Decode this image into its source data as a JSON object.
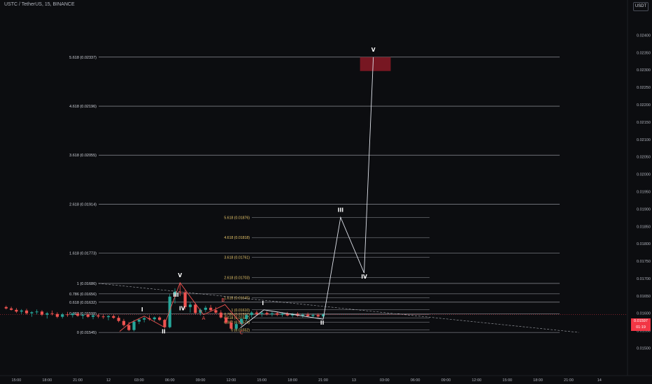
{
  "header": {
    "symbol_title": "USTC / TetherUS, 15, BINANCE",
    "currency_label": "USDT"
  },
  "price_tag": {
    "price": "0.01597",
    "countdown": "01:19"
  },
  "colors": {
    "background": "#0c0d10",
    "candle_up": "#26a69a",
    "candle_down": "#ef5350",
    "fib_big": "#d1d4dc",
    "fib_small_label": "#e8c66a",
    "target_box": "#8b1a26",
    "wave_red": "#ef5350",
    "wave_white": "#ffffff"
  },
  "chart_data": {
    "type": "candlestick",
    "y_axis": {
      "ylim": [
        0.01485,
        0.02425
      ],
      "tick_labels": [
        "0.02400",
        "0.02350",
        "0.02300",
        "0.02250",
        "0.02200",
        "0.02150",
        "0.02100",
        "0.02050",
        "0.02000",
        "0.01950",
        "0.01900",
        "0.01850",
        "0.01800",
        "0.01750",
        "0.01700",
        "0.01650",
        "0.01600",
        "0.01550",
        "0.01500"
      ]
    },
    "x_axis": {
      "tick_labels": [
        {
          "label": "15:00",
          "time": -9
        },
        {
          "label": "18:00",
          "time": -6
        },
        {
          "label": "21:00",
          "time": -3
        },
        {
          "label": "12",
          "time": 0
        },
        {
          "label": "03:00",
          "time": 3
        },
        {
          "label": "06:00",
          "time": 6
        },
        {
          "label": "09:00",
          "time": 9
        },
        {
          "label": "12:00",
          "time": 12
        },
        {
          "label": "15:00",
          "time": 15
        },
        {
          "label": "18:00",
          "time": 18
        },
        {
          "label": "21:00",
          "time": 21
        },
        {
          "label": "13",
          "time": 24
        },
        {
          "label": "03:00",
          "time": 27
        },
        {
          "label": "06:00",
          "time": 30
        },
        {
          "label": "09:00",
          "time": 33
        },
        {
          "label": "12:00",
          "time": 36
        },
        {
          "label": "15:00",
          "time": 39
        },
        {
          "label": "18:00",
          "time": 42
        },
        {
          "label": "21:00",
          "time": 45
        },
        {
          "label": "14",
          "time": 48
        }
      ]
    },
    "candles": [
      [
        -10.0,
        0.01618,
        0.01622,
        0.01611,
        0.01614
      ],
      [
        -9.5,
        0.01614,
        0.01619,
        0.01608,
        0.0161
      ],
      [
        -9.0,
        0.0161,
        0.01615,
        0.01601,
        0.01605
      ],
      [
        -8.5,
        0.01605,
        0.01612,
        0.01598,
        0.01608
      ],
      [
        -8.0,
        0.01608,
        0.01613,
        0.01596,
        0.016
      ],
      [
        -7.5,
        0.016,
        0.01606,
        0.0159,
        0.01603
      ],
      [
        -7.0,
        0.01603,
        0.01611,
        0.01597,
        0.01605
      ],
      [
        -6.5,
        0.01605,
        0.01609,
        0.01592,
        0.01596
      ],
      [
        -6.0,
        0.01596,
        0.01604,
        0.01585,
        0.016
      ],
      [
        -5.5,
        0.016,
        0.01608,
        0.01594,
        0.01598
      ],
      [
        -5.0,
        0.01598,
        0.01603,
        0.01586,
        0.0159
      ],
      [
        -4.5,
        0.0159,
        0.01601,
        0.01585,
        0.01597
      ],
      [
        -4.0,
        0.01597,
        0.01604,
        0.0159,
        0.01595
      ],
      [
        -3.5,
        0.01595,
        0.01602,
        0.01588,
        0.01599
      ],
      [
        -3.0,
        0.01599,
        0.01603,
        0.0159,
        0.01593
      ],
      [
        -2.5,
        0.01593,
        0.016,
        0.01584,
        0.01596
      ],
      [
        -2.0,
        0.01596,
        0.01601,
        0.01587,
        0.0159
      ],
      [
        -1.5,
        0.0159,
        0.01598,
        0.01583,
        0.01594
      ],
      [
        -1.0,
        0.01594,
        0.01599,
        0.01586,
        0.01591
      ],
      [
        -0.5,
        0.01591,
        0.01597,
        0.01584,
        0.01589
      ],
      [
        0.0,
        0.01589,
        0.01595,
        0.0158,
        0.01592
      ],
      [
        0.5,
        0.01592,
        0.01596,
        0.01584,
        0.01587
      ],
      [
        1.0,
        0.01587,
        0.01593,
        0.01574,
        0.01578
      ],
      [
        1.5,
        0.01578,
        0.01584,
        0.01562,
        0.01566
      ],
      [
        2.0,
        0.01566,
        0.01575,
        0.01549,
        0.01552
      ],
      [
        2.5,
        0.01552,
        0.01581,
        0.01548,
        0.01576
      ],
      [
        3.0,
        0.01576,
        0.01586,
        0.01569,
        0.01582
      ],
      [
        3.5,
        0.01582,
        0.0159,
        0.01574,
        0.01586
      ],
      [
        4.0,
        0.01586,
        0.01594,
        0.01579,
        0.01583
      ],
      [
        4.5,
        0.01583,
        0.01591,
        0.01576,
        0.01588
      ],
      [
        5.0,
        0.01588,
        0.01592,
        0.01578,
        0.01581
      ],
      [
        5.5,
        0.01581,
        0.01584,
        0.01556,
        0.0156
      ],
      [
        6.0,
        0.0156,
        0.01655,
        0.01557,
        0.01648
      ],
      [
        6.5,
        0.01648,
        0.01672,
        0.01628,
        0.01662
      ],
      [
        7.0,
        0.01662,
        0.01689,
        0.0165,
        0.0166
      ],
      [
        7.5,
        0.0166,
        0.01666,
        0.01611,
        0.01618
      ],
      [
        8.0,
        0.01618,
        0.01632,
        0.01602,
        0.01625
      ],
      [
        8.5,
        0.01625,
        0.0163,
        0.01596,
        0.01601
      ],
      [
        9.0,
        0.01601,
        0.01614,
        0.01594,
        0.0161
      ],
      [
        9.5,
        0.0161,
        0.01622,
        0.01603,
        0.01616
      ],
      [
        10.0,
        0.01616,
        0.01624,
        0.01606,
        0.01609
      ],
      [
        10.5,
        0.01609,
        0.01618,
        0.01598,
        0.01602
      ],
      [
        11.0,
        0.01602,
        0.01609,
        0.01585,
        0.01588
      ],
      [
        11.5,
        0.01588,
        0.01594,
        0.01569,
        0.01573
      ],
      [
        12.0,
        0.01573,
        0.0158,
        0.01552,
        0.01556
      ],
      [
        12.5,
        0.01556,
        0.01574,
        0.01551,
        0.01569
      ],
      [
        13.0,
        0.01569,
        0.01587,
        0.01563,
        0.01584
      ],
      [
        13.5,
        0.01584,
        0.01598,
        0.01578,
        0.01595
      ],
      [
        14.0,
        0.01595,
        0.01606,
        0.01588,
        0.01602
      ],
      [
        14.5,
        0.01602,
        0.01608,
        0.01593,
        0.01598
      ],
      [
        15.0,
        0.01598,
        0.01605,
        0.0159,
        0.01601
      ],
      [
        15.5,
        0.01601,
        0.01606,
        0.01594,
        0.01597
      ],
      [
        16.0,
        0.01597,
        0.01604,
        0.01591,
        0.016
      ],
      [
        16.5,
        0.016,
        0.01605,
        0.01592,
        0.01596
      ],
      [
        17.0,
        0.01596,
        0.01603,
        0.0159,
        0.01599
      ],
      [
        17.5,
        0.01599,
        0.01604,
        0.01591,
        0.01594
      ],
      [
        18.0,
        0.01594,
        0.01601,
        0.01588,
        0.01598
      ],
      [
        18.5,
        0.01598,
        0.01603,
        0.0159,
        0.01593
      ],
      [
        19.0,
        0.01593,
        0.016,
        0.01587,
        0.01596
      ],
      [
        19.5,
        0.01596,
        0.01602,
        0.01589,
        0.01592
      ],
      [
        20.0,
        0.01592,
        0.01599,
        0.01586,
        0.01595
      ],
      [
        20.5,
        0.01595,
        0.016,
        0.01588,
        0.01591
      ],
      [
        21.0,
        0.01591,
        0.01599,
        0.01586,
        0.01597
      ]
    ],
    "fib_levels_large": [
      {
        "label": "0 (0.01545)",
        "value": 0.01545
      },
      {
        "label": "0.382 (0.01599)",
        "value": 0.01599
      },
      {
        "label": "0.618 (0.01632)",
        "value": 0.01632
      },
      {
        "label": "0.786 (0.01656)",
        "value": 0.01656
      },
      {
        "label": "1 (0.01686)",
        "value": 0.01686
      },
      {
        "label": "1.618 (0.01773)",
        "value": 0.01773
      },
      {
        "label": "2.618 (0.01914)",
        "value": 0.01914
      },
      {
        "label": "3.618 (0.02055)",
        "value": 0.02055
      },
      {
        "label": "4.618 (0.02196)",
        "value": 0.02196
      },
      {
        "label": "5.618 (0.02337)",
        "value": 0.02337
      }
    ],
    "fib_levels_small": [
      {
        "label": "0 (0.01552)",
        "value": 0.01552
      },
      {
        "label": "0.382 (0.01574)",
        "value": 0.01574
      },
      {
        "label": "0.618 (0.01587)",
        "value": 0.01587
      },
      {
        "label": "0.786 (0.01597)",
        "value": 0.01597
      },
      {
        "label": "1 (0.01610)",
        "value": 0.0161
      },
      {
        "label": "1.618 (0.01645)",
        "value": 0.01645
      },
      {
        "label": "2.618 (0.01703)",
        "value": 0.01703
      },
      {
        "label": "3.618 (0.01761)",
        "value": 0.01761
      },
      {
        "label": "4.618 (0.01818)",
        "value": 0.01818
      },
      {
        "label": "5.618 (0.01876)",
        "value": 0.01876
      }
    ],
    "target_box": {
      "x0": 24.6,
      "x1": 27.6,
      "y0": 0.02297,
      "y1": 0.02337
    },
    "wave_red_path": [
      [
        1.1,
        0.01548
      ],
      [
        2.1,
        0.01572
      ],
      [
        3.5,
        0.01592
      ],
      [
        5.4,
        0.01561
      ],
      [
        7.0,
        0.01688
      ],
      [
        9.3,
        0.01596
      ],
      [
        11.4,
        0.01625
      ],
      [
        13.1,
        0.01566
      ]
    ],
    "wave_white_path": [
      [
        12.9,
        0.01558
      ],
      [
        15.2,
        0.0161
      ],
      [
        21.0,
        0.01583
      ],
      [
        22.7,
        0.01876
      ],
      [
        25.0,
        0.01716
      ],
      [
        25.9,
        0.02337
      ]
    ],
    "wave_red_labels": [
      {
        "text": "A",
        "x": 9.3,
        "y": 0.01581
      },
      {
        "text": "B",
        "x": 11.2,
        "y": 0.01634
      },
      {
        "text": "C",
        "x": 13.0,
        "y": 0.0154
      }
    ],
    "wave_white_labels": [
      {
        "text": "I",
        "x": 3.3,
        "y": 0.01606
      },
      {
        "text": "II",
        "x": 5.4,
        "y": 0.01542
      },
      {
        "text": "III",
        "x": 6.6,
        "y": 0.01648
      },
      {
        "text": "IV",
        "x": 7.2,
        "y": 0.01609
      },
      {
        "text": "V",
        "x": 7.0,
        "y": 0.01704
      },
      {
        "text": "I",
        "x": 15.1,
        "y": 0.01624
      },
      {
        "text": "II",
        "x": 20.9,
        "y": 0.01567
      },
      {
        "text": "III",
        "x": 22.7,
        "y": 0.01892
      },
      {
        "text": "IV",
        "x": 25.0,
        "y": 0.017
      },
      {
        "text": "V",
        "x": 25.9,
        "y": 0.02353
      }
    ],
    "dashed_trendline": [
      [
        -1,
        0.01686
      ],
      [
        46,
        0.01545
      ]
    ]
  }
}
